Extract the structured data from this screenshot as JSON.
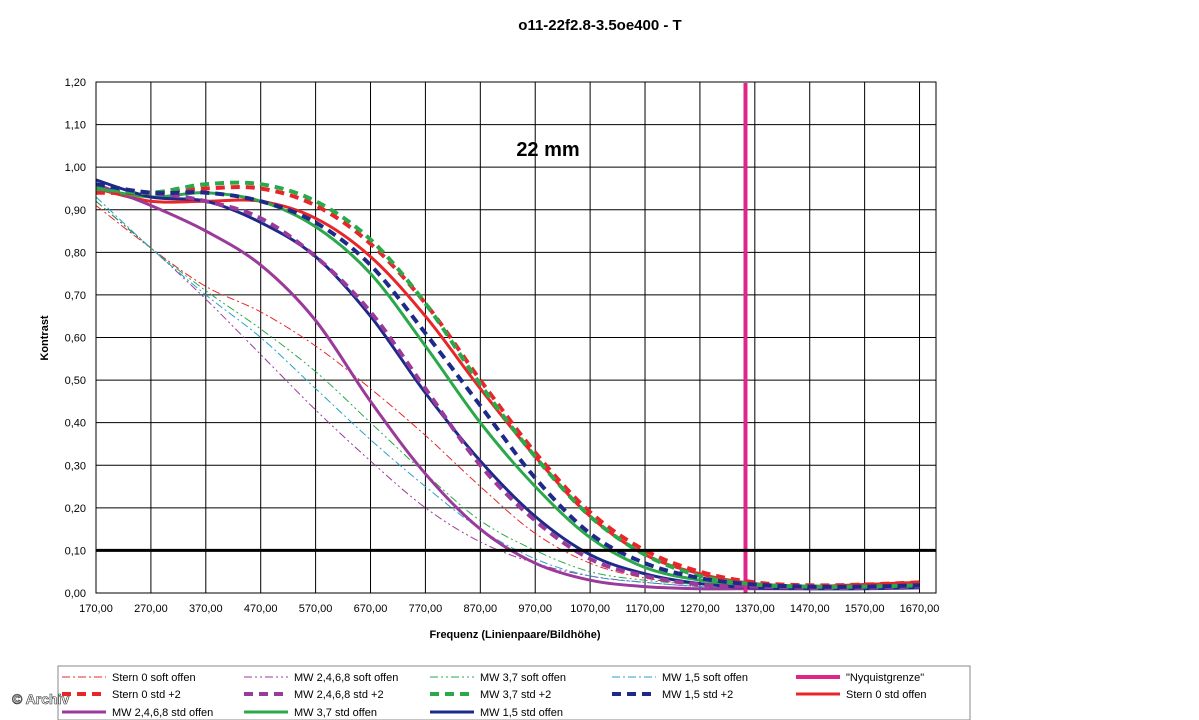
{
  "watermark": "© Archiv",
  "chart_data": {
    "type": "line",
    "title": "o11-22f2.8-3.5oe400 - T",
    "annotation": "22 mm",
    "xlabel": "Frequenz (Linienpaare/Bildhöhe)",
    "ylabel": "Kontrast",
    "xlim": [
      170,
      1700
    ],
    "ylim": [
      0,
      1.2
    ],
    "x_ticks": [
      170,
      270,
      370,
      470,
      570,
      670,
      770,
      870,
      970,
      1070,
      1170,
      1270,
      1370,
      1470,
      1570,
      1670
    ],
    "x_tick_labels": [
      "170,00",
      "270,00",
      "370,00",
      "470,00",
      "570,00",
      "670,00",
      "770,00",
      "870,00",
      "970,00",
      "1070,00",
      "1170,00",
      "1270,00",
      "1370,00",
      "1470,00",
      "1570,00",
      "1670,00"
    ],
    "y_ticks": [
      0,
      0.1,
      0.2,
      0.3,
      0.4,
      0.5,
      0.6,
      0.7,
      0.8,
      0.9,
      1.0,
      1.1,
      1.2
    ],
    "y_tick_labels": [
      "0,00",
      "0,10",
      "0,20",
      "0,30",
      "0,40",
      "0,50",
      "0,60",
      "0,70",
      "0,80",
      "0,90",
      "1,00",
      "1,10",
      "1,20"
    ],
    "grid": true,
    "reference_lines": [
      {
        "orientation": "horizontal",
        "value": 0.1,
        "color": "#000000"
      }
    ],
    "x": [
      170,
      270,
      370,
      470,
      570,
      670,
      770,
      870,
      970,
      1070,
      1170,
      1270,
      1370,
      1470,
      1570,
      1670
    ],
    "series": [
      {
        "name": "Stern 0 soft offen",
        "color": "#e8262a",
        "style": "dashdot",
        "width": 1,
        "values": [
          0.91,
          0.81,
          0.72,
          0.66,
          0.58,
          0.48,
          0.37,
          0.25,
          0.14,
          0.07,
          0.035,
          0.02,
          0.015,
          0.012,
          0.012,
          0.015
        ]
      },
      {
        "name": "MW 2,4,6,8 soft offen",
        "color": "#9a3a9a",
        "style": "dashdotdot",
        "width": 1,
        "values": [
          0.92,
          0.81,
          0.69,
          0.56,
          0.43,
          0.31,
          0.2,
          0.12,
          0.07,
          0.04,
          0.025,
          0.015,
          0.01,
          0.01,
          0.01,
          0.012
        ]
      },
      {
        "name": "MW 3,7 soft offen",
        "color": "#2aa84a",
        "style": "dashdotdot",
        "width": 1,
        "values": [
          0.92,
          0.81,
          0.71,
          0.62,
          0.52,
          0.4,
          0.28,
          0.17,
          0.1,
          0.05,
          0.03,
          0.02,
          0.015,
          0.01,
          0.01,
          0.012
        ]
      },
      {
        "name": "MW 1,5 soft offen",
        "color": "#2aa0c8",
        "style": "dashdot",
        "width": 1,
        "values": [
          0.93,
          0.81,
          0.7,
          0.6,
          0.48,
          0.36,
          0.25,
          0.15,
          0.08,
          0.04,
          0.025,
          0.015,
          0.01,
          0.01,
          0.01,
          0.012
        ]
      },
      {
        "name": "\"Nyquistgrenze\"",
        "color": "#e0268a",
        "style": "vertical",
        "width": 4,
        "x_value": 1353
      },
      {
        "name": "Stern 0 std +2",
        "color": "#e8262a",
        "style": "dashed",
        "width": 4,
        "values": [
          0.94,
          0.94,
          0.95,
          0.95,
          0.91,
          0.82,
          0.68,
          0.5,
          0.33,
          0.19,
          0.1,
          0.05,
          0.025,
          0.018,
          0.02,
          0.025
        ]
      },
      {
        "name": "MW 2,4,6,8 std +2",
        "color": "#9a3a9a",
        "style": "dashed",
        "width": 4,
        "values": [
          0.95,
          0.94,
          0.92,
          0.88,
          0.79,
          0.66,
          0.48,
          0.3,
          0.17,
          0.08,
          0.04,
          0.02,
          0.015,
          0.012,
          0.012,
          0.015
        ]
      },
      {
        "name": "MW 3,7 std +2",
        "color": "#2aa84a",
        "style": "dashed",
        "width": 4,
        "values": [
          0.95,
          0.94,
          0.96,
          0.96,
          0.92,
          0.83,
          0.68,
          0.49,
          0.32,
          0.18,
          0.09,
          0.04,
          0.02,
          0.015,
          0.015,
          0.018
        ]
      },
      {
        "name": "MW 1,5 std +2",
        "color": "#1e2a8a",
        "style": "dashed",
        "width": 4,
        "values": [
          0.96,
          0.94,
          0.94,
          0.92,
          0.87,
          0.77,
          0.61,
          0.44,
          0.27,
          0.14,
          0.07,
          0.035,
          0.02,
          0.015,
          0.015,
          0.018
        ]
      },
      {
        "name": "Stern 0 std offen",
        "color": "#e8262a",
        "style": "solid",
        "width": 3,
        "values": [
          0.95,
          0.92,
          0.92,
          0.92,
          0.88,
          0.79,
          0.65,
          0.48,
          0.32,
          0.18,
          0.09,
          0.045,
          0.022,
          0.016,
          0.02,
          0.025
        ]
      },
      {
        "name": "MW 2,4,6,8 std offen",
        "color": "#9a3a9a",
        "style": "solid",
        "width": 3,
        "values": [
          0.96,
          0.91,
          0.85,
          0.77,
          0.64,
          0.45,
          0.28,
          0.15,
          0.07,
          0.03,
          0.015,
          0.01,
          0.01,
          0.01,
          0.012,
          0.015
        ]
      },
      {
        "name": "MW 3,7 std offen",
        "color": "#2aa84a",
        "style": "solid",
        "width": 3,
        "values": [
          0.95,
          0.93,
          0.94,
          0.92,
          0.86,
          0.75,
          0.58,
          0.4,
          0.25,
          0.13,
          0.06,
          0.03,
          0.015,
          0.012,
          0.012,
          0.015
        ]
      },
      {
        "name": "MW 1,5 std offen",
        "color": "#1e2a8a",
        "style": "solid",
        "width": 3,
        "values": [
          0.97,
          0.93,
          0.92,
          0.87,
          0.79,
          0.65,
          0.47,
          0.31,
          0.18,
          0.09,
          0.045,
          0.022,
          0.012,
          0.01,
          0.01,
          0.012
        ]
      }
    ],
    "legend": {
      "placement": "bottom",
      "entries": [
        "Stern 0 soft offen",
        "MW 2,4,6,8 soft offen",
        "MW 3,7 soft offen",
        "MW 1,5 soft offen",
        "\"Nyquistgrenze\"",
        "Stern 0 std +2",
        "MW 2,4,6,8 std +2",
        "MW 3,7 std +2",
        "MW 1,5 std +2",
        "Stern 0 std offen",
        "MW 2,4,6,8 std offen",
        "MW 3,7 std offen",
        "MW 1,5 std offen"
      ]
    }
  }
}
